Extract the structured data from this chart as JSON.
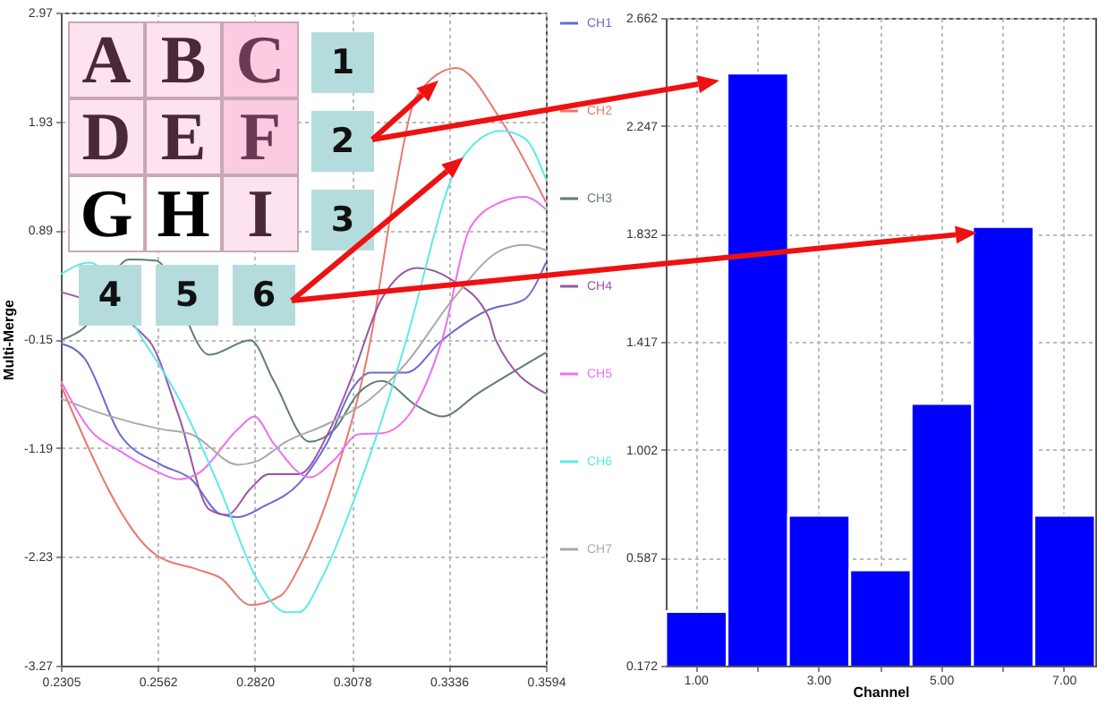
{
  "chart_data": [
    {
      "type": "line",
      "ylabel": "Multi-Merge",
      "annotations": [
        "A",
        "B",
        "C",
        "D",
        "E",
        "F",
        "G",
        "H",
        "I",
        "1",
        "2",
        "3",
        "4",
        "5",
        "6"
      ],
      "xlim": [
        0.2305,
        0.3594
      ],
      "ylim": [
        -3.27,
        2.97
      ],
      "xticks": [
        0.2305,
        0.2562,
        {
          "value": 0.282,
          "label": "0.2820"
        },
        0.3078,
        0.3336,
        0.3594
      ],
      "yticks": [
        -3.27,
        -2.23,
        -1.19,
        -0.15,
        0.89,
        1.93,
        2.97
      ],
      "grid": true,
      "legend": "right",
      "series": [
        {
          "name": "CH1",
          "color": "#6a6ad0",
          "x": [
            0.2305,
            0.2367,
            0.2462,
            0.2571,
            0.2652,
            0.2728,
            0.2776,
            0.2843,
            0.2938,
            0.3014,
            0.308,
            0.3128,
            0.3223,
            0.3318,
            0.3442,
            0.3537,
            0.3594
          ],
          "values": [
            -0.19,
            -0.33,
            -1.06,
            -1.35,
            -1.49,
            -1.82,
            -1.85,
            -1.75,
            -1.53,
            -1.13,
            -0.62,
            -0.47,
            -0.47,
            -0.16,
            0.13,
            0.23,
            0.58
          ]
        },
        {
          "name": "CH2",
          "color": "#e8786c",
          "x": [
            0.2305,
            0.2557,
            0.2667,
            0.2728,
            0.2809,
            0.289,
            0.2938,
            0.3033,
            0.3128,
            0.319,
            0.3252,
            0.3356,
            0.3475,
            0.3594
          ],
          "values": [
            -0.59,
            -2.21,
            -2.35,
            -2.43,
            -2.69,
            -2.6,
            -2.33,
            -1.47,
            -0.16,
            1.21,
            2.18,
            2.44,
            1.94,
            1.16
          ]
        },
        {
          "name": "CH3",
          "color": "#5e7e70",
          "x": [
            0.2305,
            0.2367,
            0.2486,
            0.2557,
            0.27,
            0.2809,
            0.2871,
            0.2966,
            0.3033,
            0.3095,
            0.3157,
            0.3252,
            0.3318,
            0.3413,
            0.3594
          ],
          "values": [
            -0.16,
            -0.04,
            0.61,
            0.6,
            -0.3,
            -0.16,
            -0.55,
            -1.13,
            -1.01,
            -0.67,
            -0.55,
            -0.79,
            -0.89,
            -0.67,
            -0.28
          ]
        },
        {
          "name": "CH4",
          "color": "#9a55a8",
          "x": [
            0.2305,
            0.2538,
            0.2619,
            0.27,
            0.2747,
            0.2809,
            0.2857,
            0.2938,
            0.3014,
            0.308,
            0.3157,
            0.3252,
            0.3347,
            0.3442,
            0.3461,
            0.3594
          ],
          "values": [
            0.3,
            -0.16,
            -0.89,
            -1.78,
            -1.83,
            -1.58,
            -1.44,
            -1.44,
            -1.06,
            -0.5,
            0.23,
            0.53,
            0.41,
            0.06,
            -0.16,
            -0.67
          ]
        },
        {
          "name": "CH5",
          "color": "#ee70ee",
          "x": [
            0.2305,
            0.2381,
            0.2462,
            0.2557,
            0.2619,
            0.2667,
            0.2776,
            0.2819,
            0.2871,
            0.2966,
            0.3033,
            0.3095,
            0.3157,
            0.3237,
            0.3318,
            0.3394,
            0.3475,
            0.3537,
            0.3594
          ],
          "values": [
            -0.55,
            -1.01,
            -1.22,
            -1.41,
            -1.49,
            -1.44,
            -1.01,
            -0.89,
            -1.15,
            -1.47,
            -1.3,
            -1.06,
            -1.05,
            -0.84,
            -0.16,
            0.92,
            1.16,
            1.21,
            1.09
          ]
        },
        {
          "name": "CH6",
          "color": "#5ceaea",
          "x": [
            0.2305,
            0.2381,
            0.2524,
            0.2619,
            0.2728,
            0.2824,
            0.2904,
            0.2938,
            0.2999,
            0.3095,
            0.3176,
            0.3223,
            0.3366,
            0.3475,
            0.3537,
            0.3594
          ],
          "values": [
            0.47,
            0.58,
            -0.16,
            -0.72,
            -1.58,
            -2.43,
            -2.76,
            -2.76,
            -2.43,
            -1.58,
            -0.72,
            -0.16,
            1.55,
            1.84,
            1.77,
            1.38
          ]
        },
        {
          "name": "CH7",
          "color": "#aaaaaa",
          "x": [
            0.2305,
            0.2429,
            0.2571,
            0.2652,
            0.2776,
            0.2824,
            0.2904,
            0.3014,
            0.3128,
            0.3223,
            0.3347,
            0.3475,
            0.3537,
            0.3594
          ],
          "values": [
            -0.72,
            -0.88,
            -1.01,
            -1.06,
            -1.35,
            -1.32,
            -1.13,
            -0.96,
            -0.72,
            -0.38,
            0.23,
            0.7,
            0.75,
            0.7
          ]
        }
      ]
    },
    {
      "type": "bar",
      "xlabel": "Channel",
      "categories": [
        "1.00",
        null,
        "3.00",
        null,
        "5.00",
        null,
        "7.00"
      ],
      "values": [
        0.38,
        2.45,
        0.75,
        0.54,
        1.18,
        1.86,
        0.75
      ],
      "color": "#0000ff",
      "ylim": [
        0.172,
        2.662
      ],
      "yticks": [
        0.172,
        0.587,
        1.002,
        1.417,
        1.832,
        2.247,
        2.662
      ],
      "grid": true
    }
  ]
}
